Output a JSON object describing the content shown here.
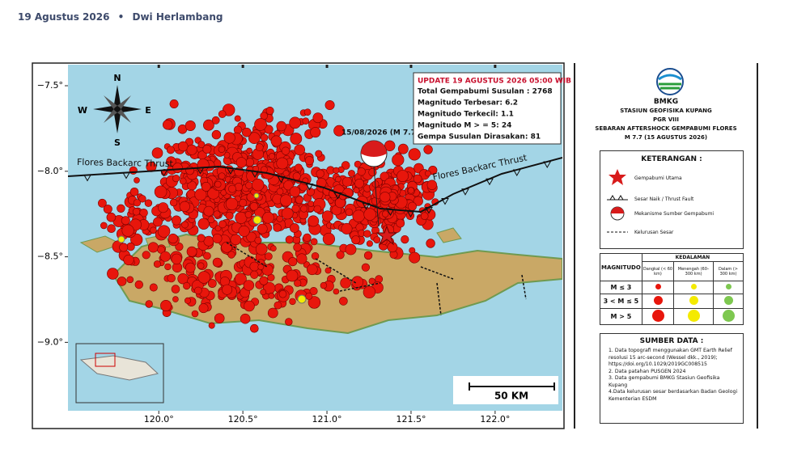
{
  "byline": {
    "date": "19 Agustus 2026",
    "author": "Dwi Herlambang"
  },
  "map": {
    "xlim": [
      119.46,
      122.4
    ],
    "ylim": [
      -9.4,
      -7.377
    ],
    "xticks": [
      {
        "value": 120.0,
        "label": "120.0°"
      },
      {
        "value": 120.5,
        "label": "120.5°"
      },
      {
        "value": 121.0,
        "label": "121.0°"
      },
      {
        "value": 121.5,
        "label": "121.5°"
      },
      {
        "value": 122.0,
        "label": "122.0°"
      }
    ],
    "yticks": [
      {
        "value": -7.5,
        "label": "−7.5°"
      },
      {
        "value": -8.0,
        "label": "−8.0°"
      },
      {
        "value": -8.5,
        "label": "−8.5°"
      },
      {
        "value": -9.0,
        "label": "−9.0°"
      }
    ],
    "compass": {
      "n": "N",
      "s": "S",
      "e": "E",
      "w": "W"
    },
    "fault_label_west": "Flores Backarc Thrust",
    "fault_label_east": "Flores Backarc Thrust",
    "mainshock_label": "15/08/2026 (M 7.7)",
    "scale_label": "50 KM",
    "info": {
      "title": "UPDATE 19 AGUSTUS 2026 05:00 WIB",
      "lines": [
        "Total Gempabumi Susulan : 2768",
        "Magnitudo Terbesar: 6.2",
        "Magnitudo Terkecil: 1.1",
        "Magnitudo M > = 5: 24",
        "Gempa Susulan Dirasakan: 81"
      ]
    }
  },
  "panel": {
    "agency": "BMKG",
    "station": "STASIUN GEOFISIKA KUPANG",
    "region": "PGR VIII",
    "title": "SEBARAN AFTERSHOCK GEMPABUMI FLORES",
    "subtitle": "M 7.7 (15 AGUSTUS 2026)",
    "legend_title": "KETERANGAN :",
    "legend_items": [
      "Gempabumi Utama",
      "Sesar Naik / Thrust Fault",
      "Mekanisme Sumber Gempabumi",
      "Kelurusan Sesar"
    ],
    "table": {
      "depth_header": "KEDALAMAN",
      "mag_header": "MAGNITUDO",
      "depths": [
        "Dangkal (< 60 km)",
        "Menengah (60–300 km)",
        "Dalam (> 300 km)"
      ],
      "mags": [
        "M ≤ 3",
        "3 < M ≤ 5",
        "M > 5"
      ]
    },
    "sources_title": "SUMBER DATA :",
    "sources": [
      "1. Data topografi menggunakan GMT Earth Relief resolusi 15 arc-second (Wessel dkk., 2019); https://doi.org/10.1029/2019GC008515",
      "2. Data patahan PUSGEN 2024",
      "3. Data gempabumi BMKG Stasiun Geofisika Kupang",
      "4.Data kelurusan sesar berdasarkan Badan Geologi Kementerian ESDM"
    ]
  }
}
